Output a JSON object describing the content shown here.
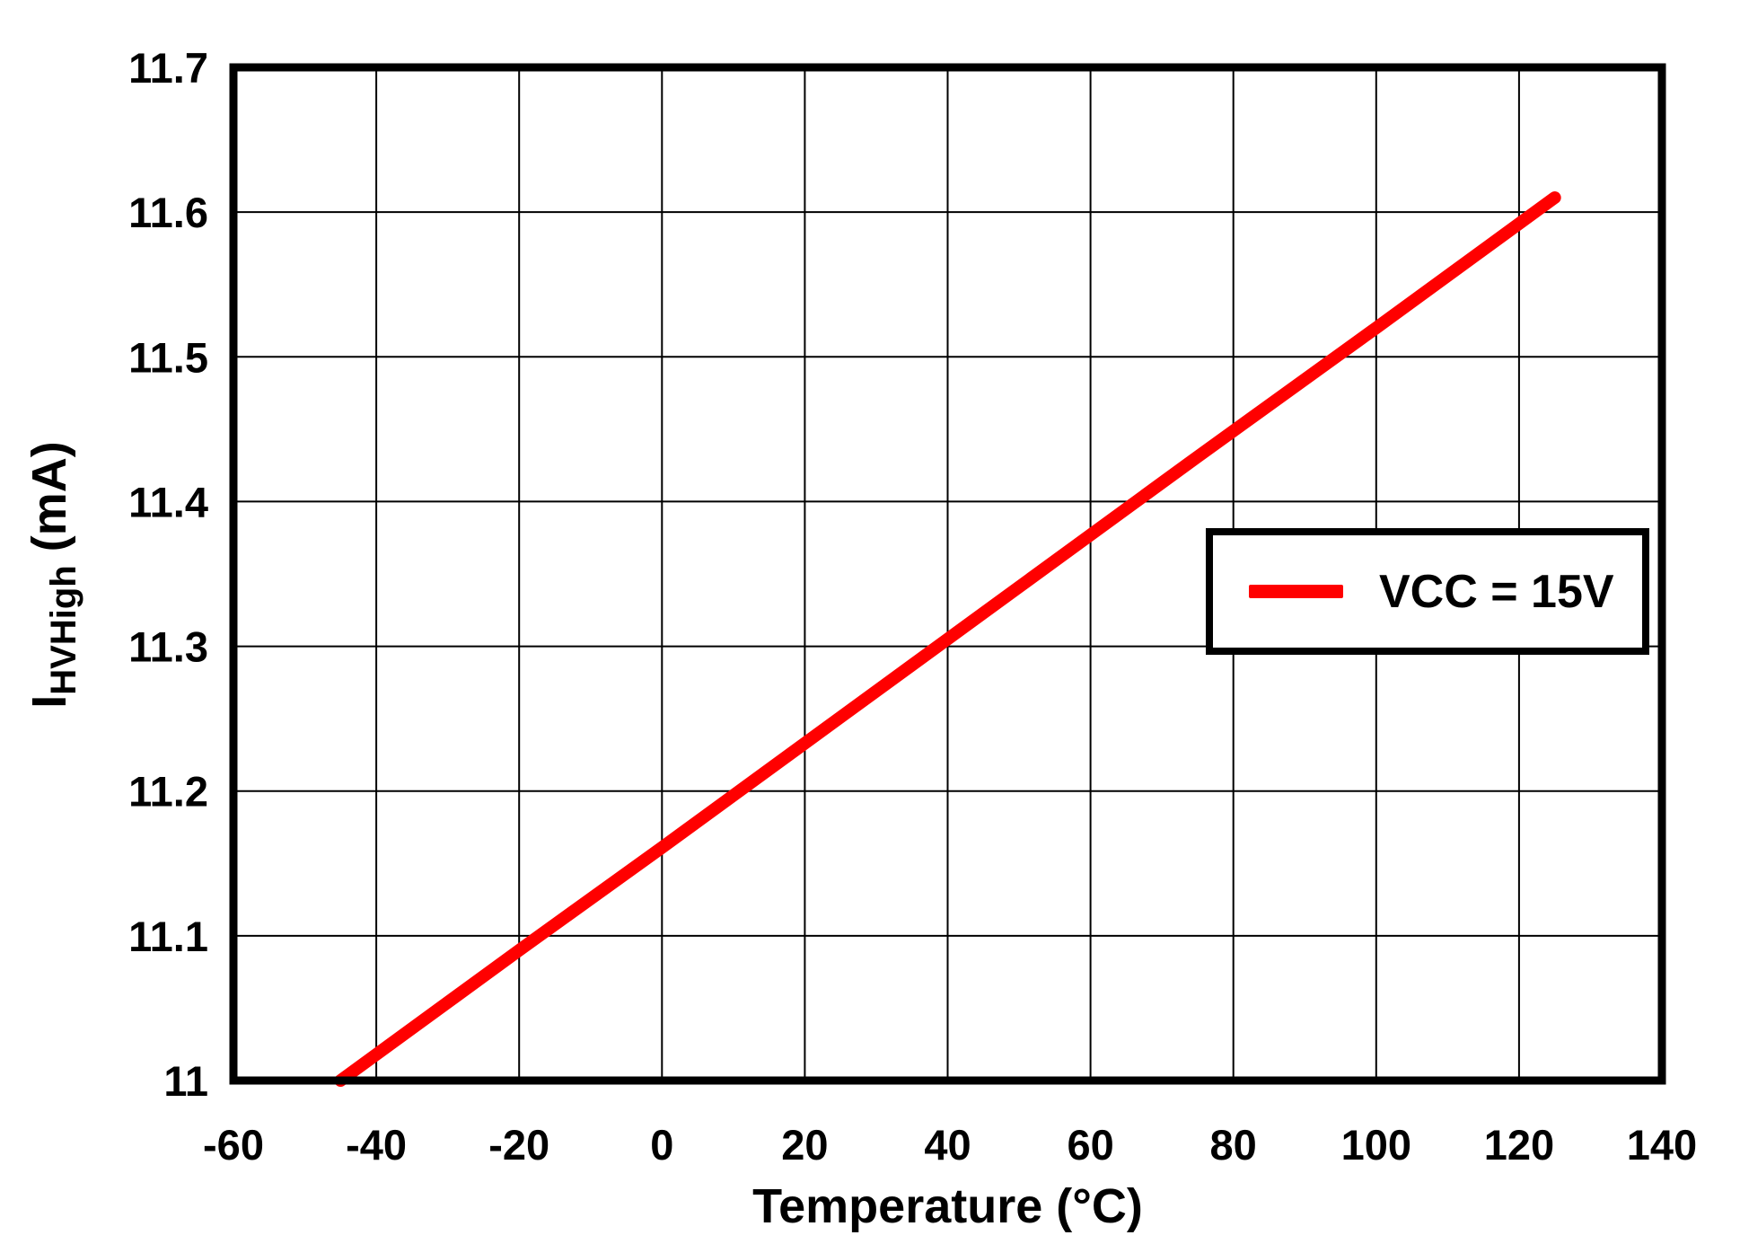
{
  "chart_data": {
    "type": "line",
    "title": "",
    "xlabel": "Temperature (°C)",
    "ylabel": {
      "prefix": "I",
      "subscript": "HVHigh",
      "suffix": " (mA)"
    },
    "xlim": [
      -60,
      140
    ],
    "ylim": [
      11,
      11.7
    ],
    "x_ticks": {
      "values": [
        -60,
        -40,
        -20,
        0,
        20,
        40,
        60,
        80,
        100,
        120,
        140
      ],
      "labels": [
        "-60",
        "-40",
        "-20",
        "0",
        "20",
        "40",
        "60",
        "80",
        "100",
        "120",
        "140"
      ]
    },
    "y_ticks": {
      "values": [
        11,
        11.1,
        11.2,
        11.3,
        11.4,
        11.5,
        11.6,
        11.7
      ],
      "labels": [
        "11",
        "11.1",
        "11.2",
        "11.3",
        "11.4",
        "11.5",
        "11.6",
        "11.7"
      ]
    },
    "grid": true,
    "legend": {
      "position": "right-middle",
      "entries": [
        {
          "label": "VCC = 15V",
          "color": "#FF0000"
        }
      ]
    },
    "series": [
      {
        "name": "VCC = 15V",
        "color": "#FF0000",
        "x": [
          -45,
          -20,
          0,
          25,
          50,
          75,
          100,
          125
        ],
        "y": [
          11.0,
          11.09,
          11.161,
          11.251,
          11.341,
          11.431,
          11.52,
          11.61
        ]
      }
    ],
    "colors": {
      "background": "#FFFFFF",
      "axis": "#000000",
      "grid": "#000000",
      "series": "#FF0000"
    }
  }
}
